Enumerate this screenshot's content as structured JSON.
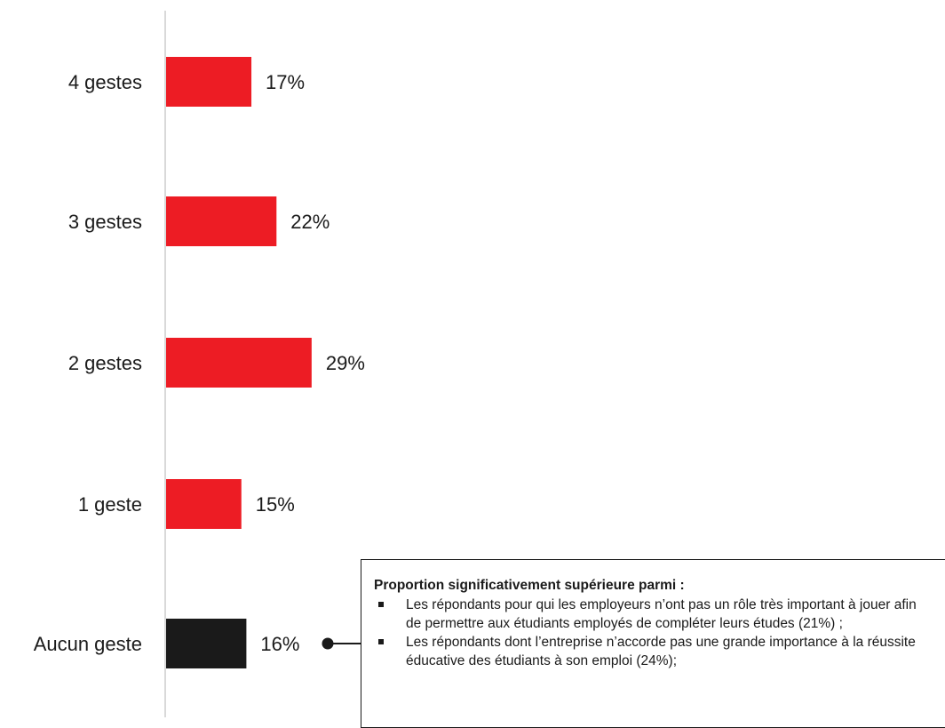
{
  "chart_data": {
    "type": "bar",
    "orientation": "horizontal",
    "categories": [
      "4 gestes",
      "3 gestes",
      "2 gestes",
      "1 geste",
      "Aucun geste"
    ],
    "values": [
      17,
      22,
      29,
      15,
      16
    ],
    "value_labels": [
      "17%",
      "22%",
      "29%",
      "15%",
      "16%"
    ],
    "unit": "%",
    "colors": [
      "#ed1c24",
      "#ed1c24",
      "#ed1c24",
      "#ed1c24",
      "#1a1a1a"
    ],
    "axis_color": "#d9d9d9",
    "grid": false,
    "xlim": [
      0,
      100
    ],
    "title": "",
    "xlabel": "",
    "ylabel": ""
  },
  "callout": {
    "title": "Proportion significativement supérieure parmi :",
    "items": [
      "Les répondants pour qui les employeurs n’ont pas un rôle très important à jouer afin de permettre aux étudiants employés de compléter leurs études (21%) ;",
      "Les répondants dont l’entreprise n’accorde pas une grande importance à la réussite éducative des étudiants à son emploi (24%);"
    ],
    "attached_to": "Aucun geste"
  }
}
